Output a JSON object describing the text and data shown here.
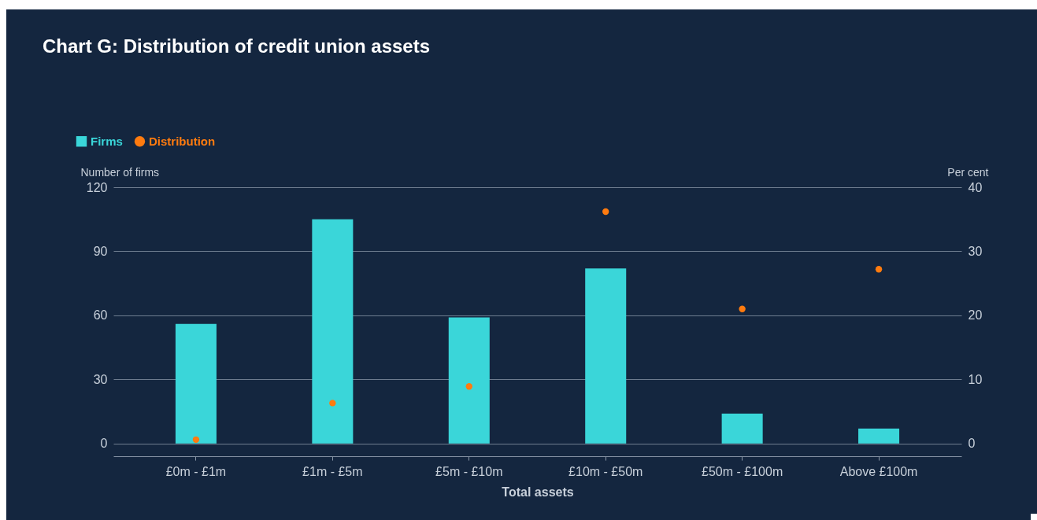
{
  "chart_data": {
    "type": "bar",
    "title": "Chart G: Distribution of credit union assets",
    "xlabel": "Total assets",
    "ylabel": "Number of firms",
    "y2label": "Per cent",
    "categories": [
      "£0m - £1m",
      "£1m - £5m",
      "£5m - £10m",
      "£10m - £50m",
      "£50m - £100m",
      "Above £100m"
    ],
    "series": [
      {
        "name": "Firms",
        "color": "#3ad6d9",
        "values": [
          56,
          105,
          59,
          82,
          14,
          7
        ]
      },
      {
        "name": "Distribution",
        "type": "scatter",
        "axis": "y2",
        "color": "#ff7b0f",
        "values": [
          0.6,
          6.3,
          8.9,
          36.2,
          21.0,
          27.2
        ]
      }
    ],
    "ylim": [
      -6,
      120
    ],
    "yticks": [
      0,
      30,
      60,
      90,
      120
    ],
    "y2lim": [
      -2,
      40
    ],
    "y2ticks": [
      0,
      10,
      20,
      30,
      40
    ],
    "grid": "y",
    "legend": "top left",
    "marker": "circle"
  }
}
